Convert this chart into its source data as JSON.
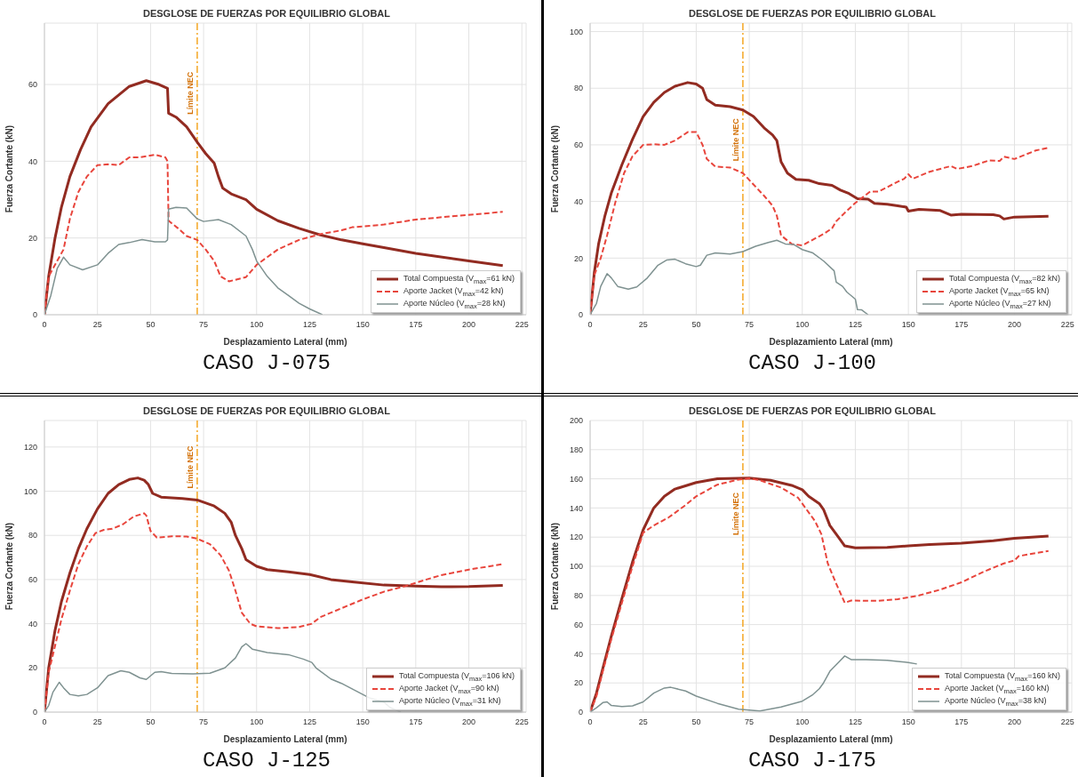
{
  "chart_data": [
    {
      "type": "line",
      "title": "DESGLOSE DE FUERZAS POR EQUILIBRIO GLOBAL",
      "xlabel": "Desplazamiento Lateral (mm)",
      "ylabel": "Fuerza Cortante (kN)",
      "xlim": [
        0,
        227
      ],
      "xticks": [
        0,
        25,
        50,
        75,
        100,
        125,
        150,
        175,
        200,
        225
      ],
      "ylim": [
        0,
        76
      ],
      "yticks": [
        0,
        20,
        40,
        60
      ],
      "grid": true,
      "legend": "bottom right",
      "annotations": [
        "CASO J-075"
      ],
      "ref_lines": [
        {
          "axis": "x",
          "value": 72,
          "label": "Límite NEC",
          "color": "#f5a623",
          "line_style": "dashed"
        }
      ],
      "series": [
        {
          "name": "Total Compuesta (V$_{max}$=61 kN)",
          "color": "#922b21",
          "line_style": "solid",
          "x": [
            0,
            2,
            5,
            8,
            12,
            17,
            22,
            30,
            40,
            48,
            54,
            58,
            58.5,
            62,
            67,
            72,
            76,
            80,
            82,
            84,
            88,
            95,
            100,
            110,
            120,
            130,
            140,
            150,
            160,
            175,
            200,
            216
          ],
          "values": [
            0,
            10,
            20,
            28,
            36,
            43,
            49,
            55,
            59.5,
            61,
            60,
            59,
            52.5,
            51.5,
            49,
            45,
            42,
            39.5,
            36,
            33,
            31.5,
            30,
            27.5,
            24.5,
            22.5,
            20.8,
            19.5,
            18.5,
            17.5,
            16,
            14,
            12.8
          ]
        },
        {
          "name": "Aporte Jacket (V$_{max}$=42 kN)",
          "color": "#e8453c",
          "line_style": "dashed",
          "x": [
            0,
            2,
            6,
            9,
            12,
            16,
            20,
            25,
            30,
            35,
            40,
            45,
            52,
            57,
            58,
            58.5,
            63,
            67,
            72,
            76,
            80,
            83,
            87,
            95,
            100,
            105,
            110,
            120,
            130,
            140,
            145,
            160,
            175,
            195,
            216
          ],
          "values": [
            0,
            10,
            14,
            17,
            25,
            32,
            36,
            39,
            39.2,
            39,
            41,
            41,
            41.7,
            41,
            40,
            24.5,
            22.5,
            20.5,
            19.5,
            17,
            14,
            10,
            8.7,
            9.8,
            13,
            15,
            17,
            19.5,
            21,
            22,
            22.8,
            23.5,
            24.8,
            25.8,
            26.8
          ]
        },
        {
          "name": "Aporte Núcleo (V$_{max}$=28 kN)",
          "color": "#7f9291",
          "line_style": "solid",
          "x": [
            0,
            3,
            6,
            9,
            12,
            18,
            25,
            30,
            35,
            40,
            46,
            52,
            57,
            58,
            58.5,
            62,
            67,
            72,
            75,
            82,
            88,
            95,
            98,
            100,
            105,
            110,
            115,
            120,
            125,
            131
          ],
          "values": [
            0,
            5,
            12,
            15,
            13,
            11.7,
            13,
            16,
            18.3,
            18.8,
            19.6,
            19,
            19,
            19.5,
            27.5,
            28,
            27.8,
            25,
            24.3,
            24.8,
            23.5,
            20.5,
            17,
            14,
            10,
            7,
            5,
            3,
            1.5,
            0
          ]
        }
      ]
    },
    {
      "type": "line",
      "title": "DESGLOSE DE FUERZAS POR EQUILIBRIO GLOBAL",
      "xlabel": "Desplazamiento Lateral (mm)",
      "ylabel": "Fuerza Cortante (kN)",
      "xlim": [
        0,
        227
      ],
      "xticks": [
        0,
        25,
        50,
        75,
        100,
        125,
        150,
        175,
        200,
        225
      ],
      "ylim": [
        0,
        103
      ],
      "yticks": [
        0,
        20,
        40,
        60,
        80,
        100
      ],
      "grid": true,
      "legend": "bottom right",
      "annotations": [
        "CASO J-100"
      ],
      "ref_lines": [
        {
          "axis": "x",
          "value": 72,
          "label": "Límite NEC",
          "color": "#f5a623",
          "line_style": "dashed"
        }
      ],
      "series": [
        {
          "name": "Total Compuesta (V$_{max}$=82 kN)",
          "color": "#922b21",
          "line_style": "solid",
          "x": [
            0,
            2,
            4,
            7,
            10,
            15,
            20,
            25,
            30,
            35,
            40,
            46,
            50,
            53,
            55,
            59,
            66,
            72,
            77,
            82,
            86,
            88,
            90,
            93,
            97,
            103,
            108,
            114,
            118,
            122,
            126,
            131,
            134,
            140,
            145,
            149,
            150,
            155,
            165,
            170,
            175,
            190,
            193,
            195,
            200,
            216
          ],
          "values": [
            0,
            15,
            25,
            35,
            43,
            53,
            62,
            70,
            75,
            78.5,
            80.7,
            82,
            81.5,
            80,
            76,
            74,
            73.5,
            72.3,
            70,
            66,
            63.5,
            61.5,
            54,
            50,
            47.8,
            47.5,
            46.3,
            45.7,
            44,
            42.8,
            41,
            40.8,
            39.3,
            39,
            38.5,
            38,
            36.6,
            37.2,
            36.8,
            35.2,
            35.5,
            35.3,
            34.9,
            33.8,
            34.5,
            34.8
          ]
        },
        {
          "name": "Aporte Jacket (V$_{max}$=65 kN)",
          "color": "#e8453c",
          "line_style": "dashed",
          "x": [
            0,
            2,
            5,
            8,
            12,
            16,
            20,
            25,
            30,
            35,
            40,
            46,
            50,
            53,
            55,
            59,
            66,
            72,
            77,
            82,
            86,
            88,
            90,
            95,
            100,
            105,
            110,
            114,
            116,
            120,
            125,
            132,
            136,
            145,
            148,
            150,
            152,
            160,
            170,
            173,
            180,
            188,
            193,
            195,
            200,
            210,
            216
          ],
          "values": [
            0,
            14,
            20,
            28,
            40,
            50,
            56,
            60,
            60.2,
            60,
            61.5,
            64.5,
            64.5,
            60,
            55,
            52.3,
            52,
            50,
            46,
            42,
            38.5,
            35,
            28,
            25,
            24.5,
            26.5,
            28.5,
            30.5,
            33,
            36,
            39.5,
            43.5,
            43.5,
            47,
            48,
            49.6,
            48,
            50.5,
            52.5,
            51.5,
            52.5,
            54.5,
            54.3,
            55.8,
            55,
            58,
            59
          ]
        },
        {
          "name": "Aporte Núcleo (V$_{max}$=27 kN)",
          "color": "#7f9291",
          "line_style": "solid",
          "x": [
            0,
            3,
            5,
            8,
            10,
            13,
            18,
            22,
            27,
            32,
            36,
            40,
            45,
            50,
            52,
            55,
            59,
            66,
            72,
            78,
            84,
            88,
            92,
            96,
            100,
            105,
            110,
            115,
            116,
            119,
            121,
            125,
            126,
            128,
            131
          ],
          "values": [
            0,
            4,
            10,
            14.5,
            13,
            10,
            9,
            9.8,
            13,
            17.5,
            19.3,
            19.6,
            18,
            17,
            17.5,
            21,
            21.8,
            21.4,
            22.3,
            24.2,
            25.5,
            26.3,
            25,
            24.8,
            23,
            21.8,
            19,
            15.5,
            11.5,
            10,
            8,
            5.5,
            1.8,
            1.7,
            0
          ]
        }
      ]
    },
    {
      "type": "line",
      "title": "DESGLOSE DE FUERZAS POR EQUILIBRIO GLOBAL",
      "xlabel": "Desplazamiento Lateral (mm)",
      "ylabel": "Fuerza Cortante (kN)",
      "xlim": [
        0,
        227
      ],
      "xticks": [
        0,
        25,
        50,
        75,
        100,
        125,
        150,
        175,
        200,
        225
      ],
      "ylim": [
        0,
        132
      ],
      "yticks": [
        0,
        20,
        40,
        60,
        80,
        100,
        120
      ],
      "grid": true,
      "legend": "bottom right",
      "annotations": [
        "CASO J-125"
      ],
      "ref_lines": [
        {
          "axis": "x",
          "value": 72,
          "label": "Límite NEC",
          "color": "#f5a623",
          "line_style": "dashed"
        }
      ],
      "series": [
        {
          "name": "Total Compuesta (V$_{max}$=106 kN)",
          "color": "#922b21",
          "line_style": "solid",
          "x": [
            0,
            2,
            5,
            8,
            12,
            16,
            20,
            25,
            30,
            35,
            40,
            44,
            47,
            49,
            51,
            55,
            65,
            72,
            80,
            85,
            88,
            90,
            93,
            95,
            100,
            105,
            115,
            125,
            135,
            145,
            160,
            175,
            187,
            200,
            216
          ],
          "values": [
            0,
            20,
            37,
            50,
            63,
            74,
            83,
            92,
            99,
            103,
            105.3,
            106,
            105,
            103,
            99,
            97.3,
            96.7,
            96,
            93.3,
            90,
            86,
            80,
            74,
            69,
            66,
            64.5,
            63.5,
            62.3,
            60,
            59,
            57.5,
            57,
            56.7,
            56.8,
            57.3
          ]
        },
        {
          "name": "Aporte Jacket (V$_{max}$=90 kN)",
          "color": "#e8453c",
          "line_style": "dashed",
          "x": [
            0,
            2,
            5,
            8,
            12,
            16,
            20,
            24,
            28,
            32,
            37,
            42,
            47,
            48,
            50,
            53,
            60,
            67,
            72,
            78,
            83,
            87,
            90,
            93,
            97,
            100,
            110,
            120,
            126,
            130,
            140,
            150,
            160,
            170,
            180,
            187,
            200,
            216
          ],
          "values": [
            0,
            18,
            30,
            42,
            55,
            67,
            75,
            81,
            82.5,
            83,
            85,
            88.5,
            90,
            89,
            82,
            79,
            79.6,
            79.5,
            78.5,
            76,
            71,
            64,
            55,
            45,
            40,
            38.8,
            38,
            38.5,
            40,
            43,
            47,
            51,
            54.5,
            57,
            60,
            62,
            64.5,
            67
          ]
        },
        {
          "name": "Aporte Núcleo (V$_{max}$=31 kN)",
          "color": "#7f9291",
          "line_style": "solid",
          "x": [
            0,
            2,
            4,
            7,
            9,
            12,
            16,
            20,
            25,
            30,
            36,
            40,
            45,
            48,
            52,
            55,
            60,
            70,
            78,
            85,
            90,
            93,
            95,
            98,
            105,
            115,
            122,
            126,
            128,
            135,
            140,
            146,
            153,
            160,
            163,
            168
          ],
          "values": [
            0,
            3,
            9,
            13.5,
            11,
            8,
            7.3,
            8,
            11,
            16.5,
            18.7,
            18,
            15.5,
            14.8,
            18,
            18.3,
            17.5,
            17.3,
            17.6,
            20,
            24.5,
            29.5,
            31,
            28.5,
            27,
            26,
            24,
            22.5,
            20,
            15,
            13,
            10,
            6.5,
            4.5,
            2,
            0
          ]
        }
      ]
    },
    {
      "type": "line",
      "title": "DESGLOSE DE FUERZAS POR EQUILIBRIO GLOBAL",
      "xlabel": "Desplazamiento Lateral (mm)",
      "ylabel": "Fuerza Cortante (kN)",
      "xlim": [
        0,
        227
      ],
      "xticks": [
        0,
        25,
        50,
        75,
        100,
        125,
        150,
        175,
        200,
        225
      ],
      "ylim": [
        0,
        200
      ],
      "yticks": [
        0,
        20,
        40,
        60,
        80,
        100,
        120,
        140,
        160,
        180,
        200
      ],
      "grid": true,
      "legend": "bottom right",
      "annotations": [
        "CASO J-175"
      ],
      "ref_lines": [
        {
          "axis": "x",
          "value": 72,
          "label": "Límite NEC",
          "color": "#f5a623",
          "line_style": "dashed"
        }
      ],
      "series": [
        {
          "name": "Total Compuesta (V$_{max}$=160 kN)",
          "color": "#922b21",
          "line_style": "solid",
          "x": [
            0,
            3,
            6,
            10,
            15,
            20,
            25,
            30,
            35,
            40,
            50,
            60,
            75,
            85,
            95,
            100,
            103,
            108,
            110,
            113,
            117,
            120,
            125,
            140,
            150,
            160,
            175,
            190,
            200,
            216
          ],
          "values": [
            0,
            13,
            30,
            52,
            78,
            103,
            125,
            140,
            148,
            153,
            157.5,
            160,
            160.5,
            159,
            155.5,
            152.5,
            148,
            143,
            139,
            128,
            120,
            114,
            112.7,
            113,
            114,
            115,
            115.8,
            117.5,
            119.2,
            120.8
          ]
        },
        {
          "name": "Aporte Jacket (V$_{max}$=160 kN)",
          "color": "#e8453c",
          "line_style": "dashed",
          "x": [
            0,
            3,
            6,
            10,
            15,
            20,
            25,
            30,
            37,
            45,
            50,
            60,
            70,
            75,
            80,
            90,
            98,
            102,
            106,
            109,
            112,
            116,
            120,
            123,
            135,
            145,
            155,
            165,
            175,
            185,
            195,
            200,
            202,
            216
          ],
          "values": [
            0,
            11,
            28,
            50,
            75,
            100,
            123,
            128,
            133.5,
            142,
            148,
            156,
            159.5,
            160.3,
            159,
            154,
            147,
            139,
            131,
            122,
            102,
            88,
            75,
            76.5,
            76.3,
            77.5,
            80,
            84,
            89,
            96,
            102,
            104,
            107,
            110.5
          ]
        },
        {
          "name": "Aporte Núcleo (V$_{max}$=38 kN)",
          "color": "#7f9291",
          "line_style": "solid",
          "x": [
            0,
            3,
            6,
            8,
            10,
            15,
            20,
            25,
            30,
            35,
            38,
            45,
            50,
            60,
            70,
            80,
            90,
            100,
            105,
            108,
            110,
            113,
            117,
            120,
            123,
            130,
            140,
            145,
            150,
            154
          ],
          "values": [
            0,
            3,
            6.5,
            7,
            4.5,
            3.8,
            4.3,
            7,
            13,
            16.5,
            17,
            14.5,
            11,
            6,
            2,
            0.8,
            3.5,
            7.5,
            12,
            16,
            20,
            28,
            34,
            38.5,
            36,
            36,
            35.5,
            34.8,
            34,
            33
          ]
        }
      ]
    }
  ]
}
